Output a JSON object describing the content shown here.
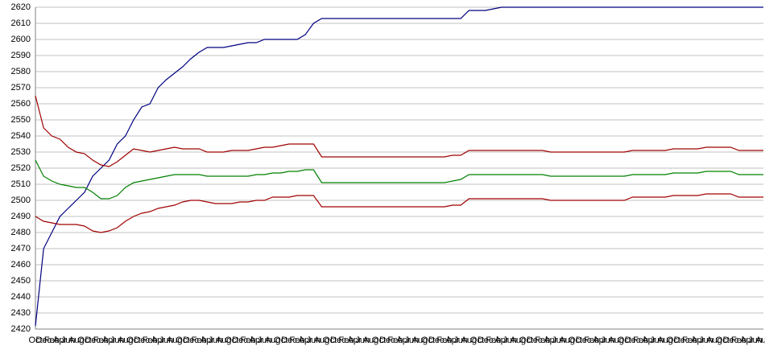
{
  "chart_data": {
    "type": "line",
    "categories": [
      "Oct",
      "Dec",
      "Feb",
      "Apr",
      "Jun",
      "Aug",
      "Oct",
      "Dec",
      "Feb",
      "Apr",
      "Jun",
      "Aug",
      "Oct",
      "Dec",
      "Feb",
      "Apr",
      "Jun",
      "Aug",
      "Oct",
      "Dec",
      "Feb",
      "Apr",
      "Jun",
      "Aug",
      "Oct",
      "Dec",
      "Feb",
      "Apr",
      "Jun",
      "Aug",
      "Oct",
      "Dec",
      "Feb",
      "Apr",
      "Jun",
      "Aug",
      "Oct",
      "Dec",
      "Feb",
      "Apr",
      "Jun",
      "Aug",
      "Oct",
      "Dec",
      "Feb",
      "Apr",
      "Jun",
      "Aug",
      "Oct",
      "Dec",
      "Feb",
      "Apr",
      "Jun",
      "Aug",
      "Oct",
      "Dec",
      "Feb",
      "Apr",
      "Jun",
      "Aug",
      "Oct",
      "Dec",
      "Feb",
      "Apr",
      "Jun",
      "Aug",
      "Oct",
      "Dec",
      "Feb",
      "Apr",
      "Jun",
      "Aug",
      "Oct",
      "Dec",
      "Feb",
      "Apr",
      "Jun",
      "Aug",
      "Oct",
      "Dec",
      "Feb",
      "Apr",
      "Jun",
      "Aug",
      "Oct",
      "Dec",
      "Feb",
      "Apr",
      "Jun",
      "Aug"
    ],
    "series": [
      {
        "color": "#000080",
        "values": [
          2422,
          2470,
          2480,
          2490,
          2495,
          2500,
          2505,
          2515,
          2520,
          2525,
          2535,
          2540,
          2550,
          2558,
          2560,
          2570,
          2575,
          2579,
          2583,
          2588,
          2592,
          2595,
          2595,
          2595,
          2596,
          2597,
          2598,
          2598,
          2600,
          2600,
          2600,
          2600,
          2600,
          2603,
          2610,
          2613,
          2613,
          2613,
          2613,
          2613,
          2613,
          2613,
          2613,
          2613,
          2613,
          2613,
          2613,
          2613,
          2613,
          2613,
          2613,
          2613,
          2613,
          2618,
          2618,
          2618,
          2619,
          2620,
          2620,
          2620,
          2620,
          2620,
          2620,
          2620,
          2620,
          2620,
          2620,
          2620,
          2620,
          2620,
          2620,
          2620,
          2620,
          2620,
          2620,
          2620,
          2620,
          2620,
          2620,
          2620,
          2620,
          2620,
          2620,
          2620,
          2620,
          2620,
          2620,
          2620,
          2620,
          2620
        ]
      },
      {
        "color": "#a00000",
        "values": [
          2565,
          2545,
          2540,
          2538,
          2533,
          2530,
          2529,
          2525,
          2522,
          2521,
          2524,
          2528,
          2532,
          2531,
          2530,
          2531,
          2532,
          2533,
          2532,
          2532,
          2532,
          2530,
          2530,
          2530,
          2531,
          2531,
          2531,
          2532,
          2533,
          2533,
          2534,
          2535,
          2535,
          2535,
          2535,
          2527,
          2527,
          2527,
          2527,
          2527,
          2527,
          2527,
          2527,
          2527,
          2527,
          2527,
          2527,
          2527,
          2527,
          2527,
          2527,
          2528,
          2528,
          2531,
          2531,
          2531,
          2531,
          2531,
          2531,
          2531,
          2531,
          2531,
          2531,
          2530,
          2530,
          2530,
          2530,
          2530,
          2530,
          2530,
          2530,
          2530,
          2530,
          2531,
          2531,
          2531,
          2531,
          2531,
          2532,
          2532,
          2532,
          2532,
          2533,
          2533,
          2533,
          2533,
          2531,
          2531,
          2531,
          2531
        ]
      },
      {
        "color": "#008000",
        "values": [
          2525,
          2515,
          2512,
          2510,
          2509,
          2508,
          2508,
          2505,
          2501,
          2501,
          2503,
          2508,
          2511,
          2512,
          2513,
          2514,
          2515,
          2516,
          2516,
          2516,
          2516,
          2515,
          2515,
          2515,
          2515,
          2515,
          2515,
          2516,
          2516,
          2517,
          2517,
          2518,
          2518,
          2519,
          2519,
          2511,
          2511,
          2511,
          2511,
          2511,
          2511,
          2511,
          2511,
          2511,
          2511,
          2511,
          2511,
          2511,
          2511,
          2511,
          2511,
          2512,
          2513,
          2516,
          2516,
          2516,
          2516,
          2516,
          2516,
          2516,
          2516,
          2516,
          2516,
          2515,
          2515,
          2515,
          2515,
          2515,
          2515,
          2515,
          2515,
          2515,
          2515,
          2516,
          2516,
          2516,
          2516,
          2516,
          2517,
          2517,
          2517,
          2517,
          2518,
          2518,
          2518,
          2518,
          2516,
          2516,
          2516,
          2516
        ]
      },
      {
        "color": "#a00000",
        "values": [
          2490,
          2487,
          2486,
          2485,
          2485,
          2485,
          2484,
          2481,
          2480,
          2481,
          2483,
          2487,
          2490,
          2492,
          2493,
          2495,
          2496,
          2497,
          2499,
          2500,
          2500,
          2499,
          2498,
          2498,
          2498,
          2499,
          2499,
          2500,
          2500,
          2502,
          2502,
          2502,
          2503,
          2503,
          2503,
          2496,
          2496,
          2496,
          2496,
          2496,
          2496,
          2496,
          2496,
          2496,
          2496,
          2496,
          2496,
          2496,
          2496,
          2496,
          2496,
          2497,
          2497,
          2501,
          2501,
          2501,
          2501,
          2501,
          2501,
          2501,
          2501,
          2501,
          2501,
          2500,
          2500,
          2500,
          2500,
          2500,
          2500,
          2500,
          2500,
          2500,
          2500,
          2502,
          2502,
          2502,
          2502,
          2502,
          2503,
          2503,
          2503,
          2503,
          2504,
          2504,
          2504,
          2504,
          2502,
          2502,
          2502,
          2502
        ]
      }
    ],
    "ylim": [
      2420,
      2620
    ],
    "yticks": [
      2420,
      2430,
      2440,
      2450,
      2460,
      2470,
      2480,
      2490,
      2500,
      2510,
      2520,
      2530,
      2540,
      2550,
      2560,
      2570,
      2580,
      2590,
      2600,
      2610,
      2620
    ],
    "grid": true
  }
}
